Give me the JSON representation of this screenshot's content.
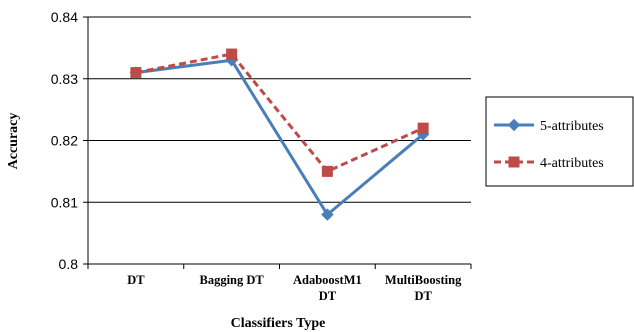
{
  "chart_data": {
    "type": "line",
    "xlabel": "Classifiers Type",
    "ylabel": "Accuracy",
    "categories": [
      [
        "DT"
      ],
      [
        "Bagging DT"
      ],
      [
        "AdaboostM1",
        "DT"
      ],
      [
        "MultiBoosting",
        "DT"
      ]
    ],
    "ylim": [
      0.8,
      0.84
    ],
    "yticks": [
      "0.8",
      "0.81",
      "0.82",
      "0.83",
      "0.84"
    ],
    "ytick_values": [
      0.8,
      0.81,
      0.82,
      0.83,
      0.84
    ],
    "grid": true,
    "legend_position": "right",
    "series": [
      {
        "name": "5-attributes",
        "values": [
          0.831,
          0.833,
          0.808,
          0.821
        ],
        "color": "#4a7ebb",
        "marker": "diamond",
        "dash": "solid"
      },
      {
        "name": "4-attributes",
        "values": [
          0.831,
          0.834,
          0.815,
          0.822
        ],
        "color": "#be4b48",
        "marker": "square",
        "dash": "dashed"
      }
    ]
  }
}
